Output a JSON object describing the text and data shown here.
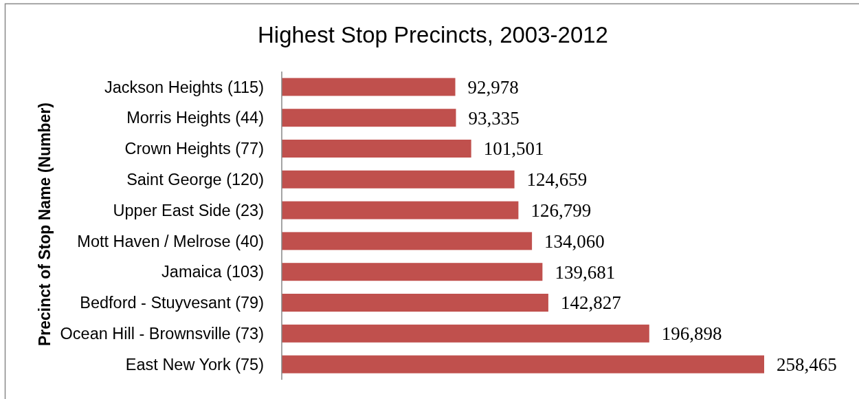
{
  "chart_data": {
    "type": "bar",
    "orientation": "horizontal",
    "title": "Highest Stop Precincts, 2003-2012",
    "ylabel": "Precinct of Stop Name (Number)",
    "categories": [
      "Jackson Heights (115)",
      "Morris Heights (44)",
      "Crown Heights (77)",
      "Saint George (120)",
      "Upper East Side (23)",
      "Mott Haven / Melrose (40)",
      "Jamaica (103)",
      "Bedford - Stuyvesant (79)",
      "Ocean Hill - Brownsville (73)",
      "East New York (75)"
    ],
    "values": [
      92978,
      93335,
      101501,
      124659,
      126799,
      134060,
      139681,
      142827,
      196898,
      258465
    ],
    "value_labels": [
      "92,978",
      "93,335",
      "101,501",
      "124,659",
      "126,799",
      "134,060",
      "139,681",
      "142,827",
      "196,898",
      "258,465"
    ],
    "color": "#c0504d"
  }
}
